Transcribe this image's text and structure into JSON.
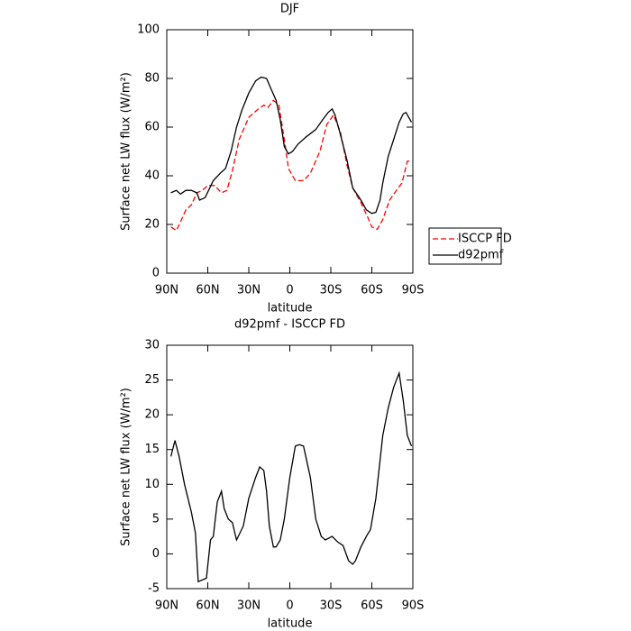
{
  "chart_data": [
    {
      "type": "line",
      "title": "DJF",
      "xlabel": "latitude",
      "ylabel": "Surface net LW flux (W/m²)",
      "xlim": [
        90,
        -90
      ],
      "xticks": [
        {
          "value": 90,
          "label": "90N"
        },
        {
          "value": 60,
          "label": "60N"
        },
        {
          "value": 30,
          "label": "30N"
        },
        0,
        {
          "value": -30,
          "label": "30S"
        },
        {
          "value": -60,
          "label": "60S"
        },
        {
          "value": -90,
          "label": "90S"
        }
      ],
      "ylim": [
        0,
        100
      ],
      "yticks": [
        0,
        20,
        40,
        60,
        80,
        100
      ],
      "legend": "right",
      "series": [
        {
          "name": "ISCCP FD",
          "color": "#ff0000",
          "dash": "dashed",
          "x": [
            87,
            83,
            80,
            76,
            72,
            68,
            64,
            60,
            55,
            50,
            46,
            42,
            37,
            30,
            24,
            19,
            16,
            12,
            8,
            4,
            1,
            -4,
            -10,
            -15,
            -22,
            -27,
            -32,
            -37,
            -42,
            -46,
            -52,
            -57,
            -60,
            -64,
            -68,
            -73,
            -78,
            -82,
            -86,
            -89
          ],
          "values": [
            19,
            17.5,
            21,
            26,
            28,
            33,
            34,
            36,
            36,
            33,
            34,
            42,
            55,
            64,
            67,
            69,
            68,
            71,
            69,
            55,
            43,
            38,
            38,
            41,
            50,
            61,
            65,
            58,
            44,
            35,
            29,
            23,
            19,
            18,
            22,
            30,
            34,
            37,
            46,
            46
          ]
        },
        {
          "name": "d92pmf",
          "color": "#000000",
          "dash": "solid",
          "x": [
            87,
            83,
            80,
            76,
            72,
            68,
            66,
            62,
            56,
            51,
            47,
            43,
            39,
            35,
            30,
            25,
            21,
            17,
            14,
            10,
            7,
            4,
            1,
            -2,
            -6,
            -12,
            -19,
            -24,
            -28,
            -31,
            -33,
            -37,
            -42,
            -46,
            -52,
            -56,
            -60,
            -63,
            -66,
            -68,
            -72,
            -76,
            -80,
            -83,
            -85,
            -89
          ],
          "values": [
            33,
            34,
            32.5,
            34,
            34,
            33,
            30,
            31,
            38,
            41,
            43,
            50,
            60,
            67,
            74,
            79,
            80.5,
            80,
            76,
            71,
            63,
            52,
            49,
            50,
            53,
            56,
            59,
            63,
            66,
            67.5,
            65,
            57,
            46,
            35,
            30,
            26,
            24.5,
            25,
            30,
            37,
            48,
            55,
            62,
            65.5,
            66,
            62
          ]
        }
      ]
    },
    {
      "type": "line",
      "title": "d92pmf - ISCCP FD",
      "xlabel": "latitude",
      "ylabel": "Surface net LW flux (W/m²)",
      "xlim": [
        90,
        -90
      ],
      "xticks": [
        {
          "value": 90,
          "label": "90N"
        },
        {
          "value": 60,
          "label": "60N"
        },
        {
          "value": 30,
          "label": "30N"
        },
        0,
        {
          "value": -30,
          "label": "30S"
        },
        {
          "value": -60,
          "label": "60S"
        },
        {
          "value": -90,
          "label": "90S"
        }
      ],
      "ylim": [
        -5,
        30
      ],
      "yticks": [
        -5,
        0,
        5,
        10,
        15,
        20,
        25,
        30
      ],
      "series": [
        {
          "color": "#000000",
          "dash": "solid",
          "x": [
            87,
            84,
            81,
            77,
            72,
            69,
            67,
            61,
            58,
            56,
            53,
            50,
            48,
            45,
            42,
            39,
            34,
            30,
            25,
            22,
            19,
            17,
            15,
            12,
            10,
            7,
            4,
            0,
            -4,
            -7,
            -10,
            -15,
            -19,
            -23,
            -26,
            -31,
            -35,
            -39,
            -43,
            -46,
            -48,
            -52,
            -56,
            -59,
            -63,
            -68,
            -72,
            -76,
            -80,
            -83,
            -86,
            -89
          ],
          "values": [
            14,
            16.3,
            14,
            10,
            6,
            3,
            -4,
            -3.5,
            2,
            2.5,
            7.5,
            9,
            6.5,
            5,
            4.5,
            2,
            4,
            8,
            11,
            12.5,
            12,
            9,
            4,
            1,
            1,
            2,
            5,
            11,
            15.5,
            15.7,
            15.5,
            11,
            5,
            2.5,
            2,
            2.5,
            1.7,
            1.2,
            -1,
            -1.5,
            -1,
            1,
            2.5,
            3.5,
            8,
            17,
            21,
            24,
            26,
            22,
            17,
            15.5
          ]
        }
      ]
    }
  ]
}
